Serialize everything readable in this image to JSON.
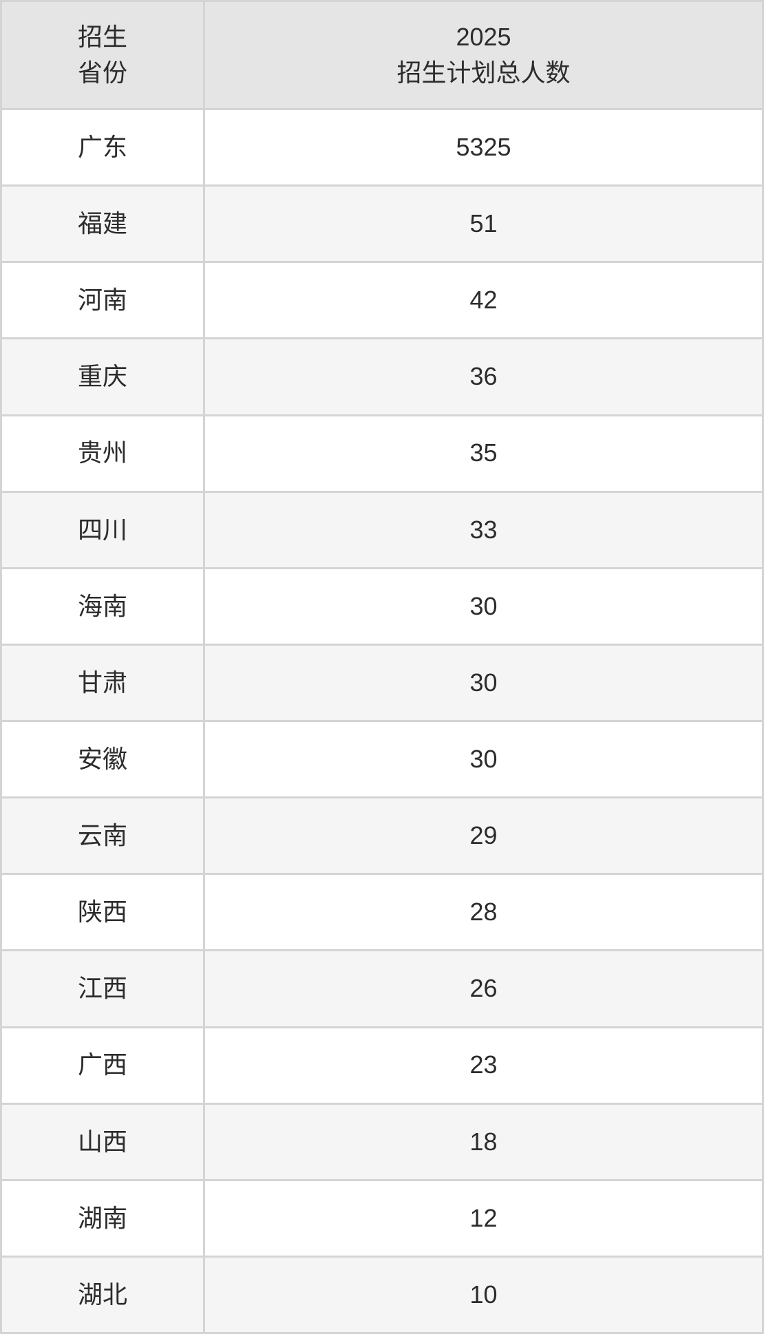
{
  "table": {
    "header": {
      "province": "招生\n省份",
      "total": "2025\n招生计划总人数"
    },
    "rows": [
      {
        "province": "广东",
        "total": "5325"
      },
      {
        "province": "福建",
        "total": "51"
      },
      {
        "province": "河南",
        "total": "42"
      },
      {
        "province": "重庆",
        "total": "36"
      },
      {
        "province": "贵州",
        "total": "35"
      },
      {
        "province": "四川",
        "total": "33"
      },
      {
        "province": "海南",
        "total": "30"
      },
      {
        "province": "甘肃",
        "total": "30"
      },
      {
        "province": "安徽",
        "total": "30"
      },
      {
        "province": "云南",
        "total": "29"
      },
      {
        "province": "陕西",
        "total": "28"
      },
      {
        "province": "江西",
        "total": "26"
      },
      {
        "province": "广西",
        "total": "23"
      },
      {
        "province": "山西",
        "total": "18"
      },
      {
        "province": "湖南",
        "total": "12"
      },
      {
        "province": "湖北",
        "total": "10"
      }
    ]
  },
  "colors": {
    "header_bg": "#e5e5e5",
    "row_bg": "#ffffff",
    "row_alt_bg": "#f5f5f5",
    "border": "#d4d4d4",
    "text": "#2c2c2c"
  },
  "chart_data": {
    "type": "table",
    "title": "2025招生计划总人数",
    "columns": [
      "招生省份",
      "2025招生计划总人数"
    ],
    "categories": [
      "广东",
      "福建",
      "河南",
      "重庆",
      "贵州",
      "四川",
      "海南",
      "甘肃",
      "安徽",
      "云南",
      "陕西",
      "江西",
      "广西",
      "山西",
      "湖南",
      "湖北"
    ],
    "values": [
      5325,
      51,
      42,
      36,
      35,
      33,
      30,
      30,
      30,
      29,
      28,
      26,
      23,
      18,
      12,
      10
    ],
    "layout": "header row shaded, zebra-striped body rows, all cells center-aligned, 2 columns"
  }
}
